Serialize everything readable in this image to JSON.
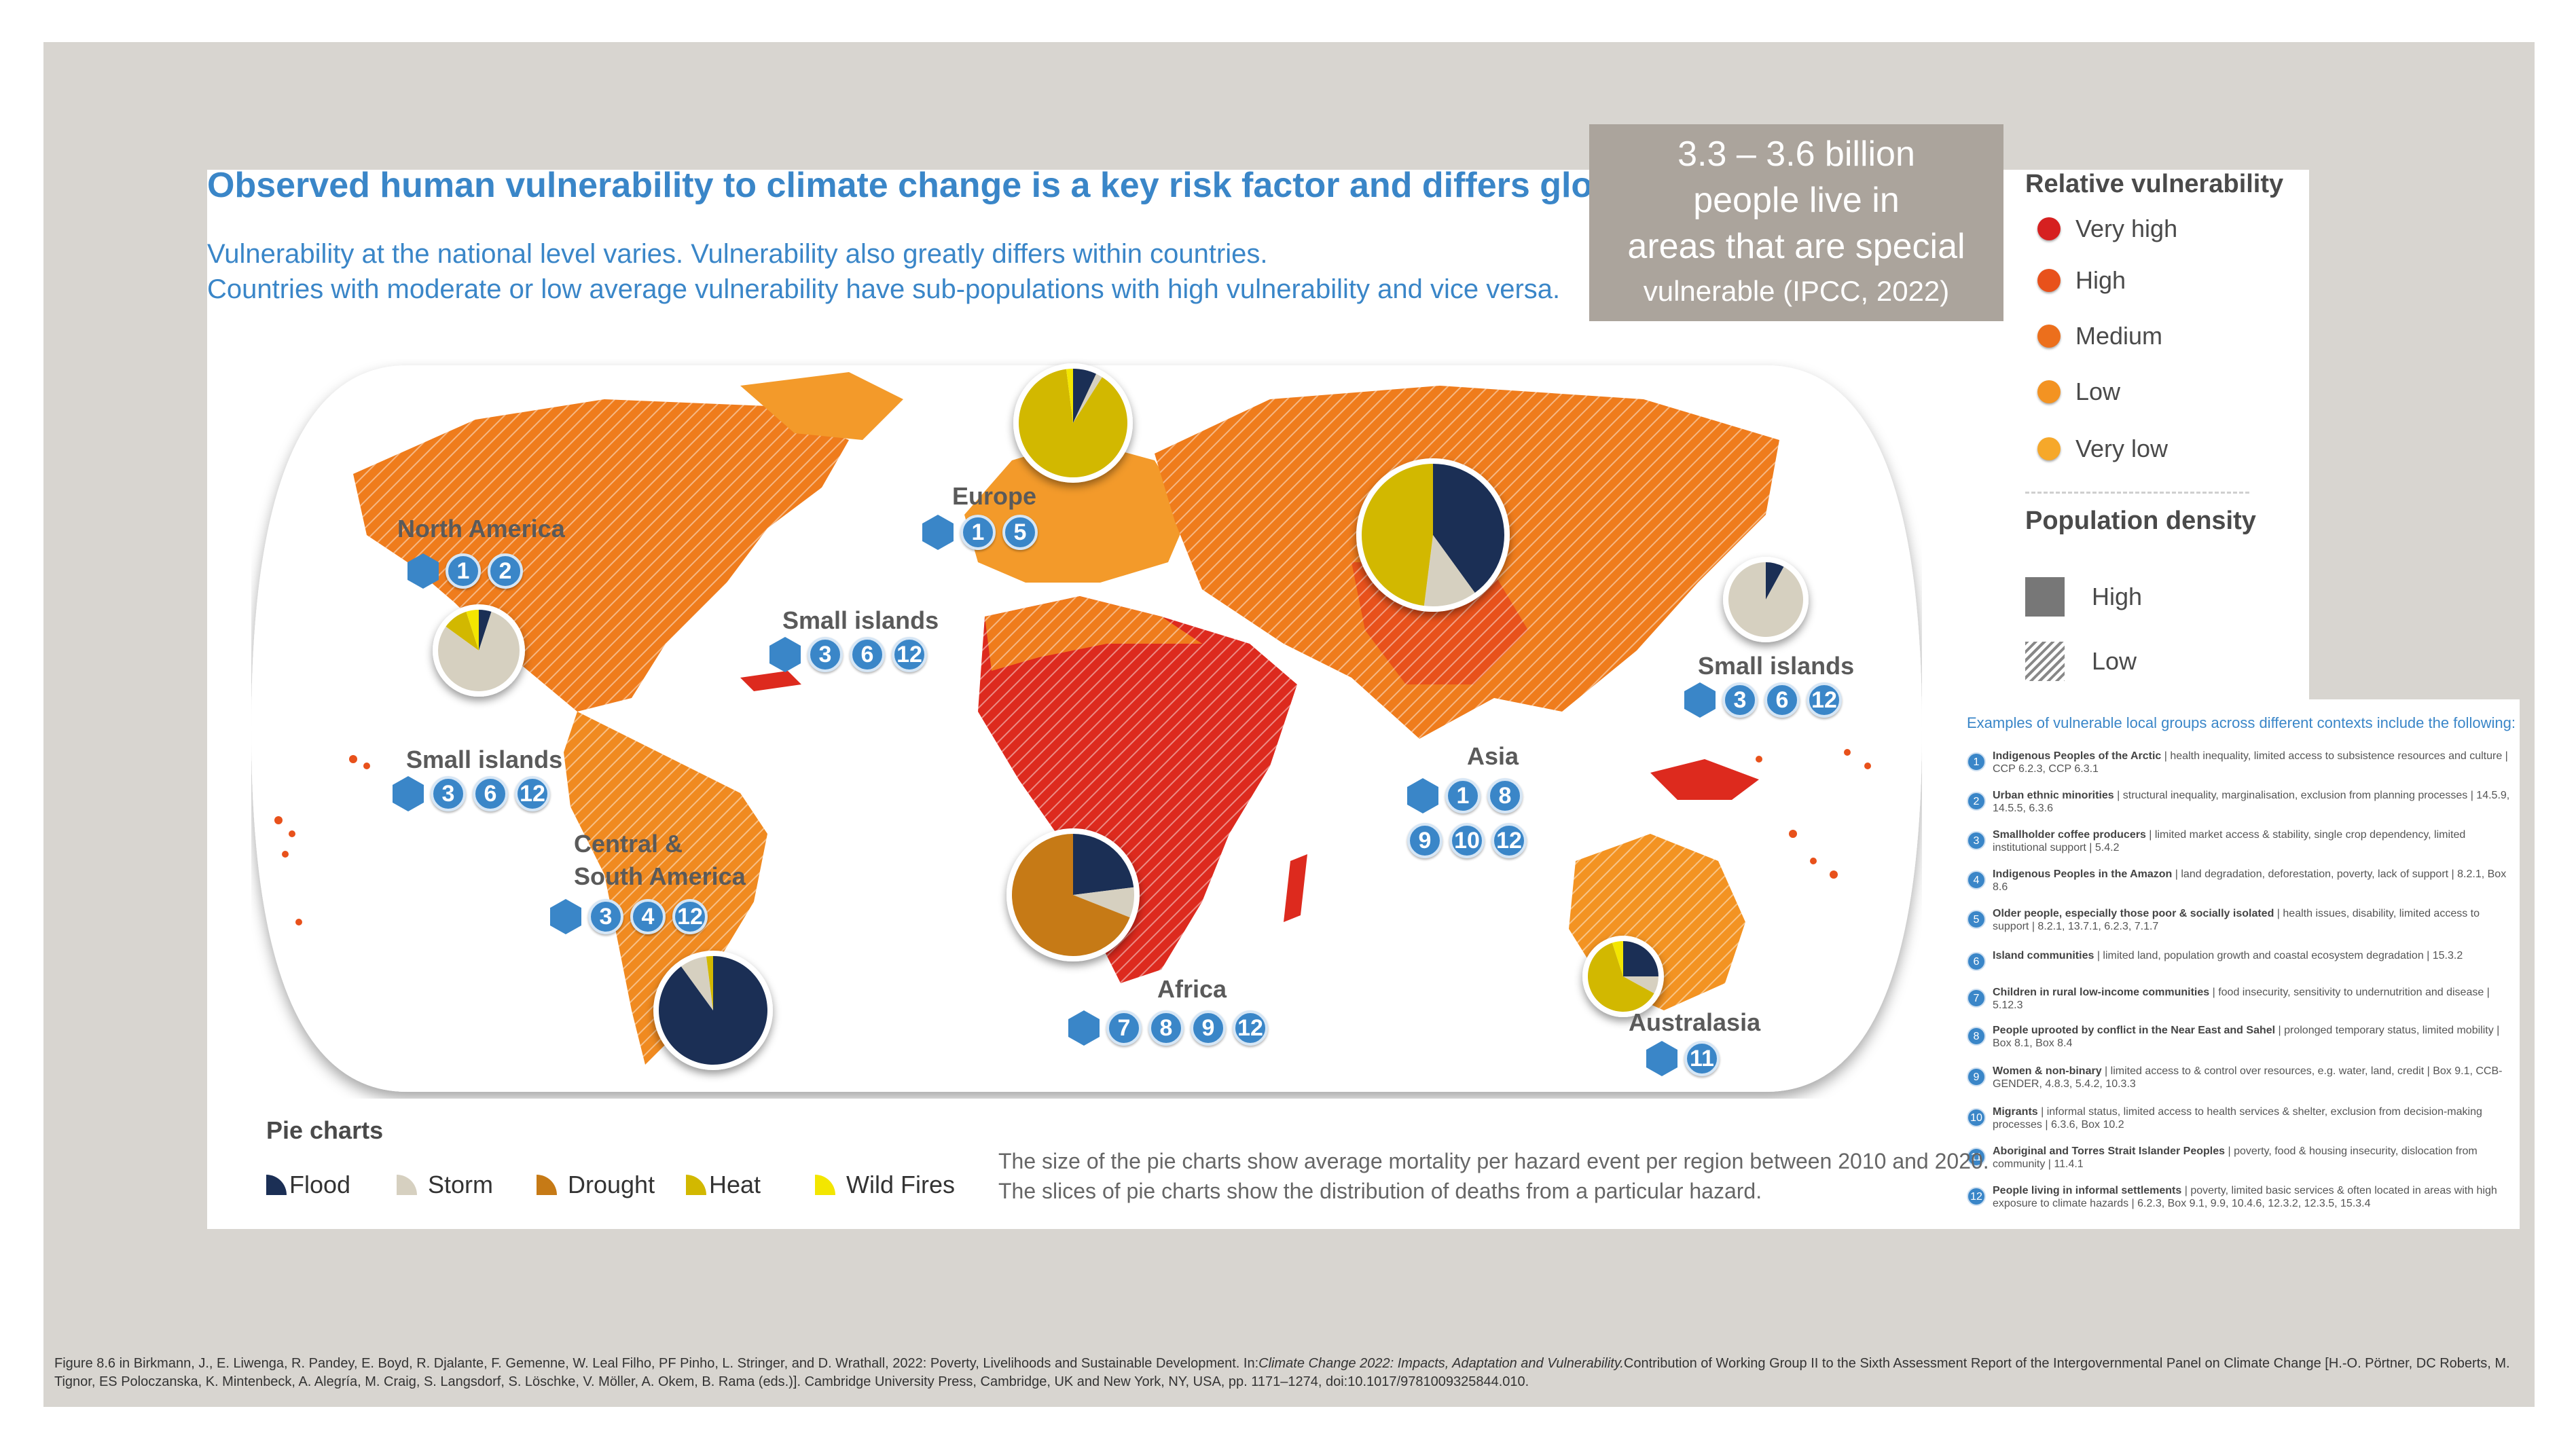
{
  "title": "Observed human vulnerability to climate change is a key risk factor and differs globally",
  "subtitle_1": "Vulnerability at the national level varies. Vulnerability also greatly differs within countries.",
  "subtitle_2": "Countries with moderate or low average vulnerability have sub-populations with high vulnerability and vice versa.",
  "callout": {
    "line1": "3.3 – 3.6 billion",
    "line2": "people live in",
    "line3": "areas that are special",
    "line4": "vulnerable (IPCC, 2022)"
  },
  "legend": {
    "vuln_title": "Relative vulnerability",
    "vuln_items": [
      {
        "label": "Very high",
        "color": "#d62020"
      },
      {
        "label": "High",
        "color": "#e8511b"
      },
      {
        "label": "Medium",
        "color": "#ec6f1c"
      },
      {
        "label": "Low",
        "color": "#f39322"
      },
      {
        "label": "Very low",
        "color": "#f6a82a"
      }
    ],
    "density_title": "Population density",
    "density_items": [
      {
        "label": "High"
      },
      {
        "label": "Low"
      }
    ]
  },
  "regions": {
    "north_america": {
      "label": "North America",
      "badges": [
        "1",
        "2"
      ]
    },
    "europe": {
      "label": "Europe",
      "badges": [
        "1",
        "5"
      ]
    },
    "small_islands_atlantic": {
      "label": "Small islands",
      "badges": [
        "3",
        "6",
        "12"
      ]
    },
    "small_islands_pacific_west": {
      "label": "Small islands",
      "badges": [
        "3",
        "6",
        "12"
      ]
    },
    "small_islands_pacific_east": {
      "label": "Small islands",
      "badges": [
        "3",
        "6",
        "12"
      ]
    },
    "central_south_america": {
      "label_1": "Central &",
      "label_2": "South America",
      "badges": [
        "3",
        "4",
        "12"
      ]
    },
    "africa": {
      "label": "Africa",
      "badges": [
        "7",
        "8",
        "9",
        "12"
      ]
    },
    "asia": {
      "label": "Asia",
      "badges_row1": [
        "1",
        "8"
      ],
      "badges_row2": [
        "9",
        "10",
        "12"
      ]
    },
    "australasia": {
      "label": "Australasia",
      "badges": [
        "11"
      ]
    }
  },
  "pies": [
    {
      "region": "North America",
      "flood": 0.05,
      "storm": 0.8,
      "drought": 0.0,
      "heat": 0.1,
      "wildfire": 0.05
    },
    {
      "region": "Europe",
      "flood": 0.07,
      "storm": 0.02,
      "drought": 0.0,
      "heat": 0.89,
      "wildfire": 0.02
    },
    {
      "region": "Asia",
      "flood": 0.4,
      "storm": 0.12,
      "drought": 0.0,
      "heat": 0.48,
      "wildfire": 0.0
    },
    {
      "region": "Small islands (Pacific east)",
      "flood": 0.08,
      "storm": 0.92,
      "drought": 0.0,
      "heat": 0.0,
      "wildfire": 0.0
    },
    {
      "region": "Central & South America",
      "flood": 0.9,
      "storm": 0.08,
      "drought": 0.0,
      "heat": 0.02,
      "wildfire": 0.0
    },
    {
      "region": "Africa",
      "flood": 0.23,
      "storm": 0.08,
      "drought": 0.69,
      "heat": 0.0,
      "wildfire": 0.0
    },
    {
      "region": "Australasia",
      "flood": 0.25,
      "storm": 0.08,
      "drought": 0.0,
      "heat": 0.62,
      "wildfire": 0.05
    }
  ],
  "pie_legend": {
    "title": "Pie charts",
    "items": [
      {
        "label": "Flood",
        "color": "#1b2f55"
      },
      {
        "label": "Storm",
        "color": "#d6d0c0"
      },
      {
        "label": "Drought",
        "color": "#c67a16"
      },
      {
        "label": "Heat",
        "color": "#d2b800"
      },
      {
        "label": "Wild Fires",
        "color": "#f3e600"
      }
    ]
  },
  "pie_note_1": "The size of the pie charts show average mortality per hazard event per region between 2010 and 2020.",
  "pie_note_2": "The slices of pie charts show the distribution of deaths from a particular hazard.",
  "groups": {
    "title": "Examples of vulnerable local groups across different contexts include the following:",
    "items": [
      {
        "num": "1",
        "name": "Indigenous Peoples of the Arctic",
        "desc": " | health inequality, limited access to subsistence resources and culture | CCP 6.2.3, CCP 6.3.1"
      },
      {
        "num": "2",
        "name": "Urban ethnic minorities",
        "desc": " | structural inequality, marginalisation, exclusion from planning processes | 14.5.9, 14.5.5, 6.3.6"
      },
      {
        "num": "3",
        "name": "Smallholder coffee producers",
        "desc": " | limited market access & stability, single crop dependency, limited institutional support | 5.4.2"
      },
      {
        "num": "4",
        "name": "Indigenous Peoples in the Amazon",
        "desc": " | land degradation, deforestation, poverty, lack of support | 8.2.1, Box 8.6"
      },
      {
        "num": "5",
        "name": "Older people, especially those poor & socially isolated",
        "desc": " | health issues, disability, limited access to support | 8.2.1, 13.7.1, 6.2.3, 7.1.7"
      },
      {
        "num": "6",
        "name": "Island communities",
        "desc": " | limited land, population growth and coastal ecosystem degradation | 15.3.2"
      },
      {
        "num": "7",
        "name": "Children in rural low-income communities",
        "desc": " | food insecurity, sensitivity to undernutrition and disease | 5.12.3"
      },
      {
        "num": "8",
        "name": "People uprooted by conflict in the Near East and Sahel",
        "desc": " | prolonged temporary status, limited mobility | Box 8.1, Box 8.4"
      },
      {
        "num": "9",
        "name": "Women & non-binary",
        "desc": " | limited access to & control over resources, e.g. water, land, credit | Box 9.1, CCB-GENDER, 4.8.3, 5.4.2, 10.3.3"
      },
      {
        "num": "10",
        "name": "Migrants",
        "desc": " | informal status, limited access to health services & shelter, exclusion from decision-making processes | 6.3.6, Box 10.2"
      },
      {
        "num": "11",
        "name": "Aboriginal and Torres Strait Islander Peoples",
        "desc": " | poverty, food & housing insecurity, dislocation from community | 11.4.1"
      },
      {
        "num": "12",
        "name": "People living in informal settlements",
        "desc": " | poverty, limited basic services & often located in areas with high exposure to climate hazards | 6.2.3, Box 9.1, 9.9, 10.4.6, 12.3.2, 12.3.5, 15.3.4"
      }
    ]
  },
  "caption_a": "Figure 8.6 in Birkmann, J., E. Liwenga, R. Pandey, E. Boyd, R. Djalante, F. Gemenne, W. Leal Filho, PF Pinho, L. Stringer, and D. Wrathall, 2022: Poverty, Livelihoods and Sustainable Development. In:",
  "caption_b": "Climate Change 2022: Impacts, Adaptation and Vulnerability.",
  "caption_c": "Contribution of Working Group II to the Sixth Assessment Report of the Intergovernmental Panel on Climate Change [H.-O. Pörtner, DC Roberts, M. Tignor, ES Poloczanska, K. Mintenbeck, A. Alegría, M. Craig, S. Langsdorf, S. Löschke, V. Möller, A. Okem, B. Rama (eds.)]. Cambridge University Press, Cambridge, UK and New York, NY, USA, pp. 1171–1274, doi:10.1017/9781009325844.010."
}
